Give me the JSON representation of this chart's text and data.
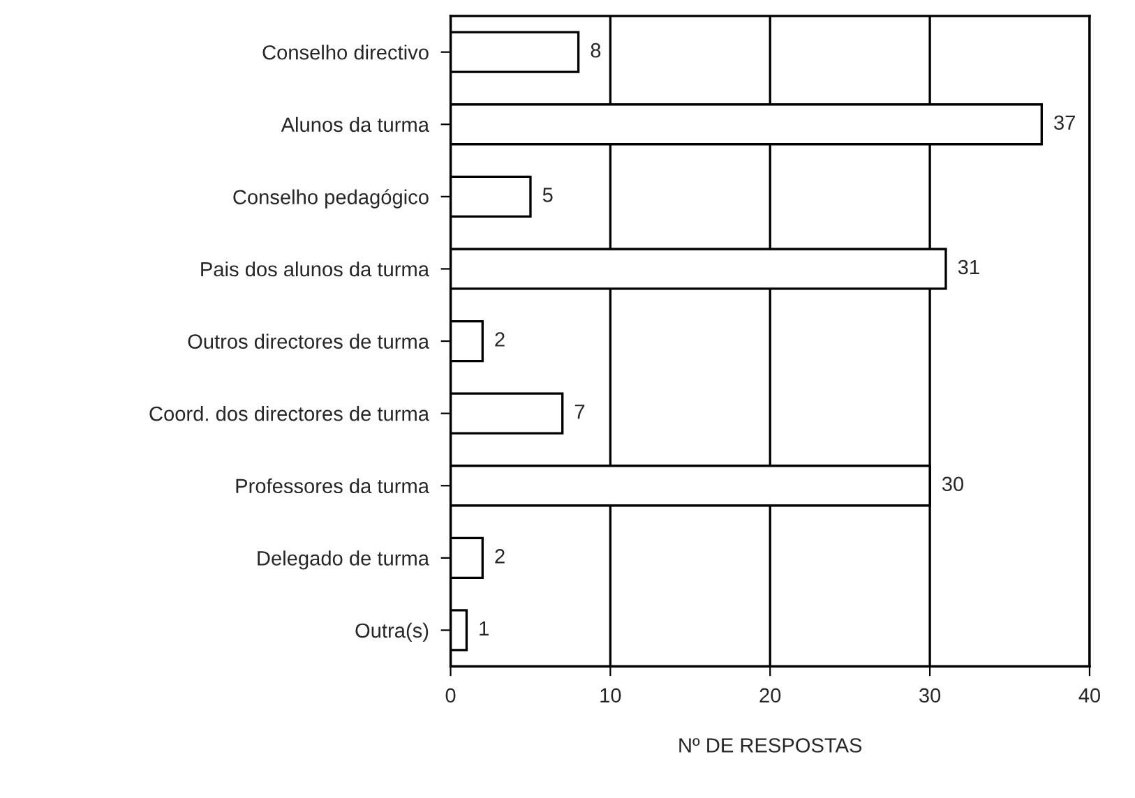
{
  "chart_data": {
    "type": "bar",
    "orientation": "horizontal",
    "categories": [
      "Conselho directivo",
      "Alunos da turma",
      "Conselho pedagógico",
      "Pais dos alunos da turma",
      "Outros directores de turma",
      "Coord. dos directores de turma",
      "Professores da turma",
      "Delegado de turma",
      "Outra(s)"
    ],
    "values": [
      8,
      37,
      5,
      31,
      2,
      7,
      30,
      2,
      1
    ],
    "color": "#ffffff",
    "xlim": [
      0,
      40
    ],
    "xticks": [
      0,
      10,
      20,
      30,
      40
    ],
    "xlabel": "Nº DE RESPOSTAS",
    "grid": "x",
    "data_labels": true
  }
}
